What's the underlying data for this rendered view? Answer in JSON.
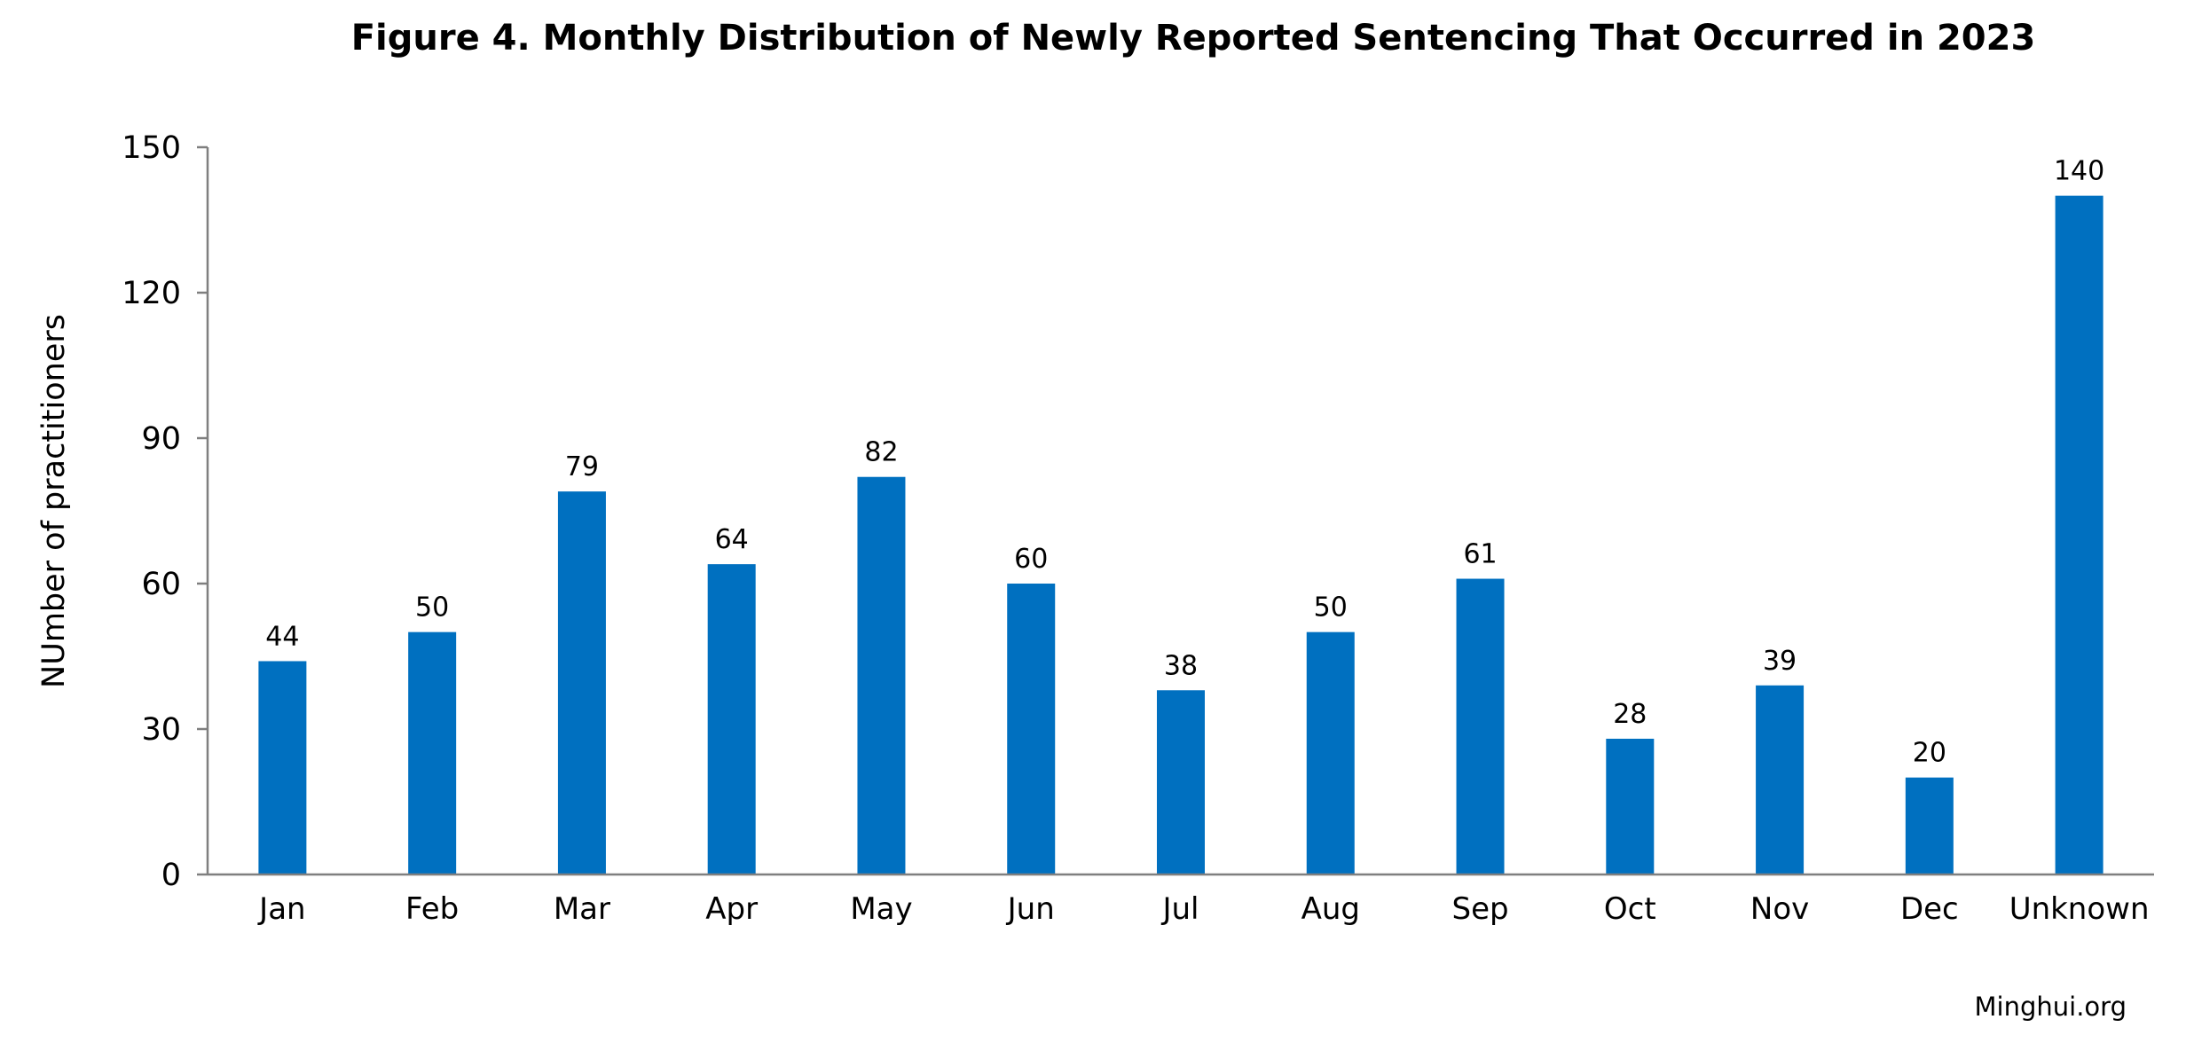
{
  "chart_data": {
    "type": "bar",
    "title": "Figure 4. Monthly Distribution of Newly Reported Sentencing That Occurred in 2023",
    "xlabel": "",
    "ylabel": "NUmber of practitioners",
    "categories": [
      "Jan",
      "Feb",
      "Mar",
      "Apr",
      "May",
      "Jun",
      "Jul",
      "Aug",
      "Sep",
      "Oct",
      "Nov",
      "Dec",
      "Unknown"
    ],
    "values": [
      44,
      50,
      79,
      64,
      82,
      60,
      38,
      50,
      61,
      28,
      39,
      20,
      140
    ],
    "data_labels": [
      "44",
      "50",
      "79",
      "64",
      "82",
      "60",
      "38",
      "50",
      "61",
      "28",
      "39",
      "20",
      "140"
    ],
    "ylim": [
      0,
      150
    ],
    "yticks": [
      0,
      30,
      60,
      90,
      120,
      150
    ],
    "ytick_labels": [
      "0",
      "30",
      "60",
      "90",
      "120",
      "150"
    ],
    "grid": false,
    "legend": "none",
    "bar_color": "#0070C0",
    "axis_color": "#7F7F7F"
  },
  "source": "Minghui.org"
}
